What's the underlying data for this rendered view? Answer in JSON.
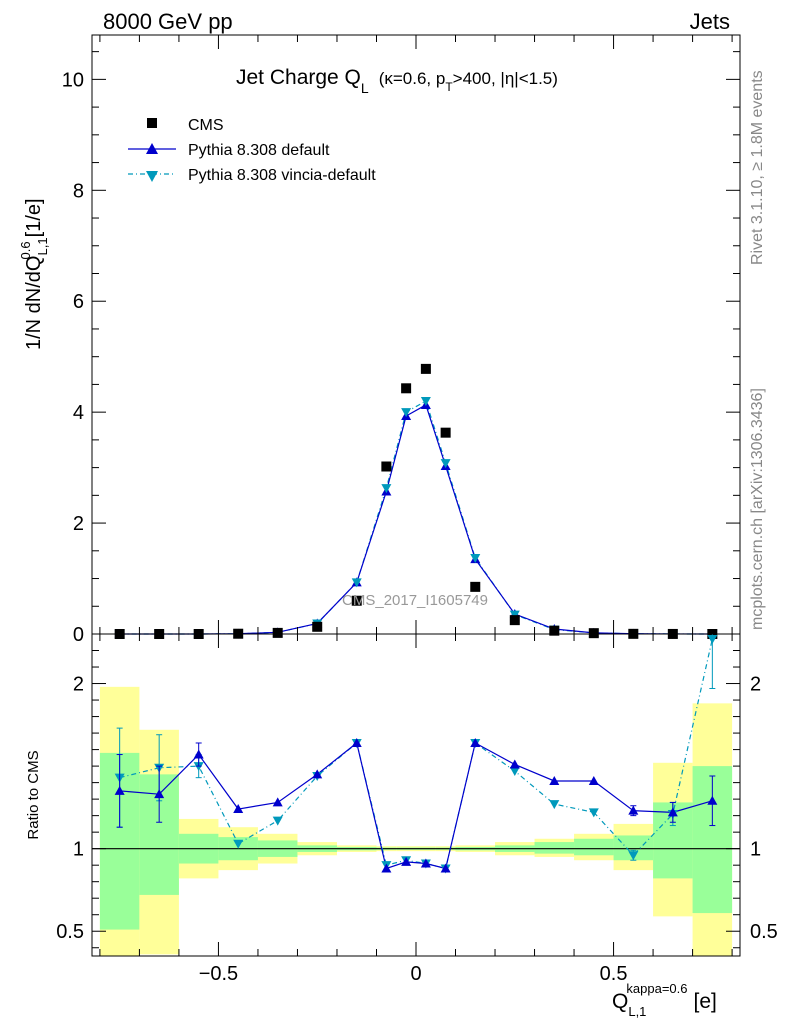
{
  "header": {
    "left": "8000 GeV pp",
    "right": "Jets"
  },
  "side_texts": {
    "rivet": "Rivet 3.1.10, ≥ 1.8M events",
    "mcplots": "mcplots.cern.ch [arXiv:1306.3436]"
  },
  "watermark": "CMS_2017_I1605749",
  "colors": {
    "cms": "#000000",
    "pythia_default": "#0000cc",
    "pythia_vincia": "#0099bb",
    "band_outer": "#ffff99",
    "band_inner": "#99ff99"
  },
  "chart_data": [
    {
      "type": "scatter",
      "title_main": "Jet Charge Q",
      "title_sub": "L",
      "title_rest": "(κ=0.6, p",
      "title_sub2": "T",
      "title_rest2": ">400, |η|<1.5)",
      "ylabel": "1/N dN/dQ",
      "ylabel_sup": "0.6",
      "ylabel_sub": "L,1",
      "ylabel_unit": "[1/e]",
      "xlim": [
        -0.82,
        0.82
      ],
      "ylim": [
        0,
        10.8
      ],
      "yticks": [
        0,
        2,
        4,
        6,
        8,
        10
      ],
      "ytick_labels": [
        "0",
        "2",
        "4",
        "6",
        "8",
        "10"
      ],
      "legend": [
        "CMS",
        "Pythia 8.308 default",
        "Pythia 8.308 vincia-default"
      ],
      "cms": {
        "name": "CMS",
        "x": [
          -0.75,
          -0.65,
          -0.55,
          -0.45,
          -0.35,
          -0.25,
          -0.15,
          -0.075,
          -0.025,
          0.025,
          0.075,
          0.15,
          0.25,
          0.35,
          0.45,
          0.55,
          0.65,
          0.75
        ],
        "y": [
          0.0,
          0.0,
          0.0,
          0.005,
          0.02,
          0.13,
          0.6,
          3.02,
          4.43,
          4.78,
          3.63,
          0.85,
          0.25,
          0.06,
          0.015,
          0.003,
          0.001,
          0.0
        ]
      },
      "series": [
        {
          "name": "Pythia 8.308 default",
          "x": [
            -0.75,
            -0.65,
            -0.55,
            -0.45,
            -0.35,
            -0.25,
            -0.15,
            -0.075,
            -0.025,
            0.025,
            0.075,
            0.15,
            0.25,
            0.35,
            0.45,
            0.55,
            0.65,
            0.75
          ],
          "y": [
            0.0,
            0.0,
            0.0,
            0.005,
            0.03,
            0.19,
            0.93,
            2.57,
            3.93,
            4.13,
            3.03,
            1.35,
            0.36,
            0.09,
            0.02,
            0.005,
            0.001,
            0.0
          ]
        },
        {
          "name": "Pythia 8.308 vincia-default",
          "x": [
            -0.75,
            -0.65,
            -0.55,
            -0.45,
            -0.35,
            -0.25,
            -0.15,
            -0.075,
            -0.025,
            0.025,
            0.075,
            0.15,
            0.25,
            0.35,
            0.45,
            0.55,
            0.65,
            0.75
          ],
          "y": [
            0.0,
            0.0,
            0.0,
            0.004,
            0.03,
            0.19,
            0.93,
            2.63,
            4.0,
            4.2,
            3.08,
            1.37,
            0.35,
            0.08,
            0.02,
            0.004,
            0.001,
            0.0
          ]
        }
      ]
    },
    {
      "type": "line",
      "ylabel": "Ratio to CMS",
      "xlabel": "Q",
      "xlabel_sup": "kappa=0.6",
      "xlabel_sub": "L,1",
      "xlabel_unit": "[e]",
      "xlim": [
        -0.82,
        0.82
      ],
      "ylim": [
        0.35,
        2.3
      ],
      "xticks": [
        -0.5,
        0,
        0.5
      ],
      "xtick_labels": [
        "−0.5",
        "0",
        "0.5"
      ],
      "yticks": [
        0.5,
        1,
        2
      ],
      "ytick_labels": [
        "0.5",
        "1",
        "2"
      ],
      "bands": [
        {
          "x0": -0.8,
          "x1": -0.7,
          "outer": [
            0.31,
            1.98
          ],
          "inner": [
            0.51,
            1.58
          ]
        },
        {
          "x0": -0.7,
          "x1": -0.6,
          "outer": [
            0.36,
            1.72
          ],
          "inner": [
            0.72,
            1.45
          ]
        },
        {
          "x0": -0.6,
          "x1": -0.5,
          "outer": [
            0.82,
            1.18
          ],
          "inner": [
            0.91,
            1.09
          ]
        },
        {
          "x0": -0.5,
          "x1": -0.4,
          "outer": [
            0.87,
            1.13
          ],
          "inner": [
            0.93,
            1.07
          ]
        },
        {
          "x0": -0.4,
          "x1": -0.3,
          "outer": [
            0.91,
            1.09
          ],
          "inner": [
            0.95,
            1.05
          ]
        },
        {
          "x0": -0.3,
          "x1": -0.2,
          "outer": [
            0.96,
            1.04
          ],
          "inner": [
            0.98,
            1.02
          ]
        },
        {
          "x0": -0.2,
          "x1": -0.1,
          "outer": [
            0.98,
            1.02
          ],
          "inner": [
            0.99,
            1.01
          ]
        },
        {
          "x0": -0.1,
          "x1": -0.05,
          "outer": [
            0.985,
            1.015
          ],
          "inner": [
            0.993,
            1.007
          ]
        },
        {
          "x0": -0.05,
          "x1": 0.0,
          "outer": [
            0.985,
            1.015
          ],
          "inner": [
            0.993,
            1.007
          ]
        },
        {
          "x0": 0.0,
          "x1": 0.05,
          "outer": [
            0.985,
            1.015
          ],
          "inner": [
            0.993,
            1.007
          ]
        },
        {
          "x0": 0.05,
          "x1": 0.1,
          "outer": [
            0.985,
            1.015
          ],
          "inner": [
            0.993,
            1.007
          ]
        },
        {
          "x0": 0.1,
          "x1": 0.2,
          "outer": [
            0.98,
            1.02
          ],
          "inner": [
            0.99,
            1.01
          ]
        },
        {
          "x0": 0.2,
          "x1": 0.3,
          "outer": [
            0.96,
            1.04
          ],
          "inner": [
            0.98,
            1.02
          ]
        },
        {
          "x0": 0.3,
          "x1": 0.4,
          "outer": [
            0.95,
            1.06
          ],
          "inner": [
            0.97,
            1.04
          ]
        },
        {
          "x0": 0.4,
          "x1": 0.5,
          "outer": [
            0.93,
            1.09
          ],
          "inner": [
            0.96,
            1.06
          ]
        },
        {
          "x0": 0.5,
          "x1": 0.6,
          "outer": [
            0.87,
            1.15
          ],
          "inner": [
            0.93,
            1.08
          ]
        },
        {
          "x0": 0.6,
          "x1": 0.7,
          "outer": [
            0.59,
            1.52
          ],
          "inner": [
            0.82,
            1.28
          ]
        },
        {
          "x0": 0.7,
          "x1": 0.8,
          "outer": [
            0.31,
            1.88
          ],
          "inner": [
            0.61,
            1.5
          ]
        }
      ],
      "series": [
        {
          "name": "Pythia 8.308 default",
          "x": [
            -0.75,
            -0.65,
            -0.55,
            -0.45,
            -0.35,
            -0.25,
            -0.15,
            -0.075,
            -0.025,
            0.025,
            0.075,
            0.15,
            0.25,
            0.35,
            0.45,
            0.55,
            0.65,
            0.75
          ],
          "y": [
            1.35,
            1.33,
            1.57,
            1.24,
            1.28,
            1.45,
            1.64,
            0.88,
            0.92,
            0.91,
            0.88,
            1.64,
            1.51,
            1.41,
            1.41,
            1.23,
            1.22,
            1.29
          ],
          "err": [
            0.22,
            0.17,
            0.07,
            0.02,
            0.01,
            0.01,
            0.01,
            0.0,
            0.0,
            0.0,
            0.0,
            0.0,
            0.01,
            0.01,
            0.02,
            0.03,
            0.06,
            0.15
          ]
        },
        {
          "name": "Pythia 8.308 vincia-default",
          "x": [
            -0.75,
            -0.65,
            -0.55,
            -0.45,
            -0.35,
            -0.25,
            -0.15,
            -0.075,
            -0.025,
            0.025,
            0.075,
            0.15,
            0.25,
            0.35,
            0.45,
            0.55,
            0.65,
            0.75
          ],
          "y": [
            1.43,
            1.49,
            1.5,
            1.03,
            1.17,
            1.44,
            1.64,
            0.9,
            0.93,
            0.91,
            0.88,
            1.64,
            1.47,
            1.27,
            1.22,
            0.96,
            1.21,
            2.27
          ],
          "err": [
            0.3,
            0.2,
            0.07,
            0.02,
            0.01,
            0.01,
            0.01,
            0.0,
            0.0,
            0.0,
            0.0,
            0.0,
            0.01,
            0.01,
            0.02,
            0.03,
            0.07,
            0.3
          ]
        }
      ]
    }
  ]
}
